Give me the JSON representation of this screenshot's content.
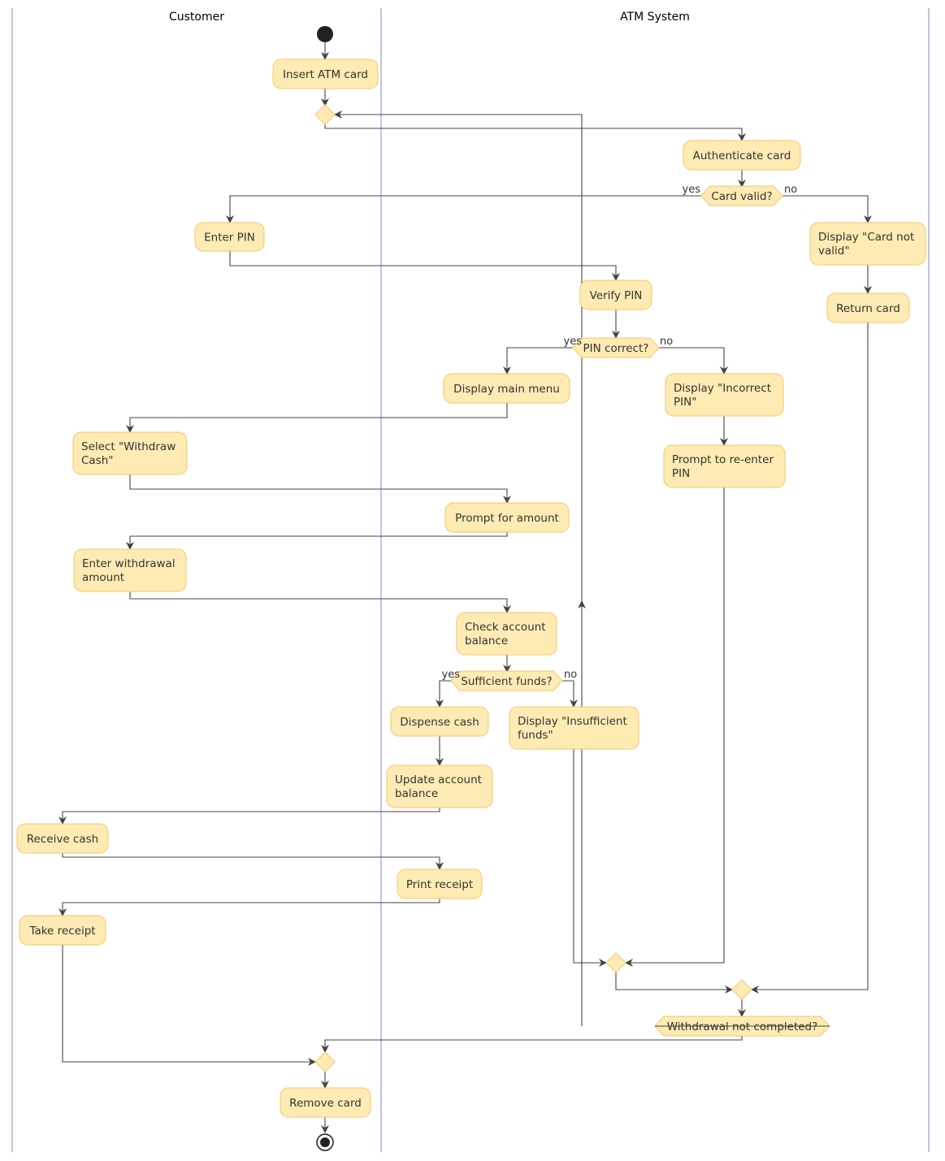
{
  "lanes": [
    "Customer",
    "ATM System"
  ],
  "activities": {
    "insert_card": [
      "Insert ATM card"
    ],
    "authenticate": [
      "Authenticate card"
    ],
    "enter_pin": [
      "Enter PIN"
    ],
    "card_not_valid": [
      "Display \"Card not",
      "valid\""
    ],
    "return_card": [
      "Return card"
    ],
    "verify_pin": [
      "Verify PIN"
    ],
    "main_menu": [
      "Display main menu"
    ],
    "incorrect_pin": [
      "Display \"Incorrect",
      "PIN\""
    ],
    "reenter_pin": [
      "Prompt to re-enter",
      "PIN"
    ],
    "select_withdraw": [
      "Select \"Withdraw",
      "Cash\""
    ],
    "prompt_amount": [
      "Prompt for amount"
    ],
    "enter_amount": [
      "Enter withdrawal",
      "amount"
    ],
    "check_balance": [
      "Check account",
      "balance"
    ],
    "dispense": [
      "Dispense cash"
    ],
    "insufficient": [
      "Display \"Insufficient",
      "funds\""
    ],
    "update_balance": [
      "Update account",
      "balance"
    ],
    "receive_cash": [
      "Receive cash"
    ],
    "print_receipt": [
      "Print receipt"
    ],
    "take_receipt": [
      "Take receipt"
    ],
    "remove_card": [
      "Remove card"
    ]
  },
  "decisions": {
    "card_valid": "Card valid?",
    "pin_correct": "PIN correct?",
    "sufficient": "Sufficient funds?",
    "not_completed": "Withdrawal not completed?"
  },
  "guards": {
    "yes": "yes",
    "no": "no"
  },
  "colors": {
    "activity_fill": "#FEEBB4",
    "activity_border": "#F6C66A",
    "lane_line": "#A9B0DA",
    "line": "#444444"
  }
}
